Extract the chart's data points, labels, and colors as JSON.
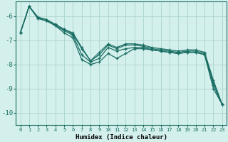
{
  "xlabel": "Humidex (Indice chaleur)",
  "bg_color": "#d4f0ec",
  "grid_color": "#aed8d0",
  "line_color": "#1a6e64",
  "xlim": [
    -0.5,
    23.5
  ],
  "ylim": [
    -10.5,
    -5.4
  ],
  "yticks": [
    -10,
    -9,
    -8,
    -7,
    -6
  ],
  "xticks": [
    0,
    1,
    2,
    3,
    4,
    5,
    6,
    7,
    8,
    9,
    10,
    11,
    12,
    13,
    14,
    15,
    16,
    17,
    18,
    19,
    20,
    21,
    22,
    23
  ],
  "series_x": [
    0,
    1,
    2,
    3,
    4,
    5,
    6,
    7,
    8,
    9,
    10,
    11,
    12,
    13,
    14,
    15,
    16,
    17,
    18,
    19,
    20,
    21,
    22,
    23
  ],
  "series": [
    [
      -6.7,
      -5.6,
      -6.1,
      -6.2,
      -6.4,
      -6.7,
      -6.9,
      -7.8,
      -8.0,
      -7.9,
      -7.55,
      -7.75,
      -7.55,
      -7.35,
      -7.35,
      -7.4,
      -7.45,
      -7.5,
      -7.55,
      -7.5,
      -7.5,
      -7.6,
      -9.0,
      -9.65
    ],
    [
      -6.7,
      -5.6,
      -6.1,
      -6.2,
      -6.4,
      -6.6,
      -6.8,
      -7.6,
      -7.9,
      -7.75,
      -7.3,
      -7.45,
      -7.35,
      -7.3,
      -7.3,
      -7.4,
      -7.45,
      -7.5,
      -7.55,
      -7.5,
      -7.5,
      -7.6,
      -8.85,
      -9.65
    ],
    [
      -6.7,
      -5.6,
      -6.05,
      -6.15,
      -6.35,
      -6.55,
      -6.75,
      -7.35,
      -7.85,
      -7.6,
      -7.2,
      -7.35,
      -7.2,
      -7.2,
      -7.25,
      -7.35,
      -7.4,
      -7.45,
      -7.5,
      -7.45,
      -7.45,
      -7.55,
      -8.75,
      -9.65
    ],
    [
      -6.7,
      -5.6,
      -6.05,
      -6.15,
      -6.35,
      -6.55,
      -6.7,
      -7.3,
      -7.85,
      -7.5,
      -7.15,
      -7.3,
      -7.15,
      -7.15,
      -7.2,
      -7.3,
      -7.35,
      -7.4,
      -7.45,
      -7.4,
      -7.4,
      -7.5,
      -8.65,
      -9.65
    ]
  ],
  "xlabel_fontsize": 6.5,
  "ytick_fontsize": 6.5,
  "xtick_fontsize": 5.0
}
